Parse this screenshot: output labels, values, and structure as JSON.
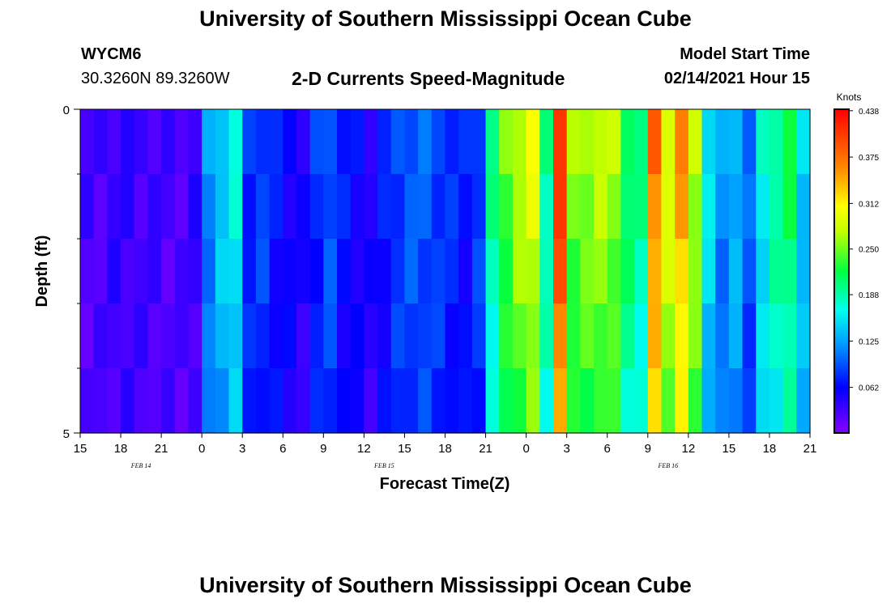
{
  "header": {
    "title": "University of Southern Mississippi Ocean Cube",
    "station": "WYCM6",
    "coords": "30.3260N 89.3260W",
    "subtitle": "2-D Currents Speed-Magnitude",
    "model_start_label": "Model Start Time",
    "model_start_value": "02/14/2021 Hour 15"
  },
  "footer": {
    "title": "University of Southern Mississippi Ocean Cube"
  },
  "chart_data": {
    "type": "heatmap",
    "xlabel": "Forecast Time(Z)",
    "ylabel": "Depth (ft)",
    "x_ticks": [
      "15",
      "18",
      "21",
      "0",
      "3",
      "6",
      "9",
      "12",
      "15",
      "18",
      "21",
      "0",
      "3",
      "6",
      "9",
      "12",
      "15",
      "18",
      "21"
    ],
    "date_labels": [
      {
        "label": "FEB 14",
        "tick_index": 1
      },
      {
        "label": "FEB 15",
        "tick_index": 7
      },
      {
        "label": "FEB 16",
        "tick_index": 14
      }
    ],
    "y_ticks": [
      "0",
      "5"
    ],
    "ylim": [
      0,
      5
    ],
    "colorbar": {
      "title": "Knots",
      "ticks": [
        "0.438",
        "0.375",
        "0.312",
        "0.250",
        "0.188",
        "0.125",
        "0.062"
      ],
      "range": [
        0.0,
        0.44
      ]
    },
    "depth_layers": 5,
    "time_steps": 54,
    "profile": [
      0.03,
      0.03,
      0.04,
      0.04,
      0.035,
      0.035,
      0.03,
      0.03,
      0.04,
      0.12,
      0.15,
      0.17,
      0.08,
      0.09,
      0.07,
      0.06,
      0.05,
      0.08,
      0.1,
      0.07,
      0.06,
      0.05,
      0.07,
      0.09,
      0.1,
      0.1,
      0.09,
      0.08,
      0.07,
      0.09,
      0.2,
      0.25,
      0.28,
      0.3,
      0.2,
      0.42,
      0.26,
      0.27,
      0.28,
      0.27,
      0.22,
      0.2,
      0.38,
      0.3,
      0.36,
      0.28,
      0.16,
      0.12,
      0.14,
      0.1,
      0.17,
      0.2,
      0.22,
      0.15
    ]
  }
}
